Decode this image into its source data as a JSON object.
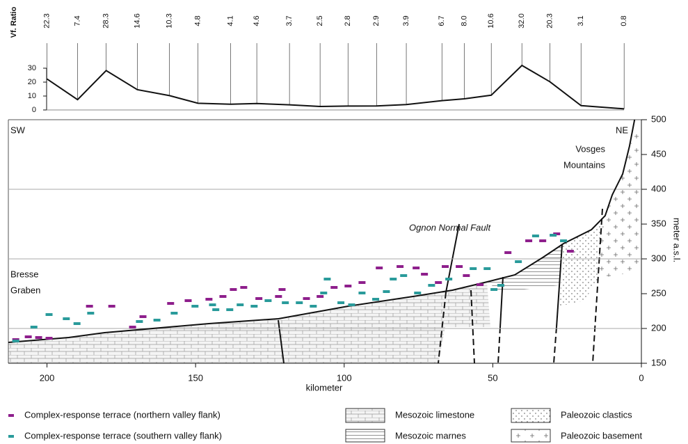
{
  "chart_data": [
    {
      "type": "line",
      "ylabel": "Vf. Ratio",
      "color": "#111",
      "x": [
        200.0,
        189.7,
        180.1,
        169.6,
        158.8,
        149.2,
        138.2,
        129.4,
        118.4,
        108.1,
        98.7,
        89.1,
        79.1,
        67.1,
        59.6,
        50.5,
        40.2,
        30.8,
        20.3,
        5.8
      ],
      "values": [
        22.3,
        7.4,
        28.3,
        14.6,
        10.3,
        4.8,
        4.1,
        4.6,
        3.7,
        2.5,
        2.8,
        2.9,
        3.9,
        6.7,
        8.0,
        10.6,
        32.0,
        20.3,
        3.1,
        0.8
      ],
      "value_labels": [
        "22.3",
        "7.4",
        "28.3",
        "14.6",
        "10.3",
        "4.8",
        "4.1",
        "4.6",
        "3.7",
        "2.5",
        "2.8",
        "2.9",
        "3.9",
        "6.7",
        "8.0",
        "10.6",
        "32.0",
        "20.3",
        "3.1",
        "0.8"
      ],
      "xlim": [
        213,
        0
      ],
      "ylim": [
        0,
        30
      ],
      "yticks": [
        0,
        10,
        20,
        30
      ]
    },
    {
      "type": "scatter",
      "xlabel": "kilometer",
      "ylabel": "meter a.s.l.",
      "xlim": [
        213,
        0
      ],
      "xticks": [
        200,
        150,
        100,
        50,
        0
      ],
      "ylim": [
        150,
        500
      ],
      "yticks": [
        150,
        200,
        250,
        300,
        350,
        400,
        450,
        500
      ],
      "grid_lines": [
        200,
        300,
        400
      ],
      "annotations": [
        "SW",
        "NE",
        "Vosges",
        "Mountains",
        "Bresse",
        "Graben",
        "Ognon Normal Fault"
      ],
      "units": [
        "Mesozoic limestone",
        "Mesozoic marnes",
        "Paleozoic clastics",
        "Paleozoic basement"
      ],
      "profile": {
        "color": "#111",
        "x": [
          213,
          192.7,
          180.6,
          145.5,
          122.1,
          98.7,
          75.3,
          63.6,
          51.9,
          42.6,
          33.2,
          26.2,
          16.8,
          12.2,
          9.8,
          6.3,
          4.0,
          2.3
        ],
        "values": [
          180,
          187,
          194,
          207,
          214,
          232,
          247,
          255,
          267,
          277,
          302,
          322,
          342,
          362,
          392,
          422,
          462,
          500
        ]
      },
      "series": [
        {
          "name": "Complex-response terrace (northern valley flank)",
          "color": "#8e1f8c",
          "x": [
            210.5,
            206.3,
            202.8,
            199.3,
            185.7,
            178.2,
            171.2,
            167.7,
            158.4,
            152.5,
            145.5,
            140.8,
            137.3,
            133.8,
            128.7,
            122.1,
            120.9,
            112.7,
            108.1,
            103.4,
            98.7,
            94.0,
            88.2,
            81.2,
            75.8,
            73.0,
            68.3,
            66.0,
            61.3,
            58.9,
            54.3,
            44.9,
            37.9,
            33.2,
            28.5,
            23.9
          ],
          "values": [
            184,
            188,
            187,
            186,
            232,
            232,
            202,
            217,
            236,
            240,
            242,
            246,
            256,
            259,
            243,
            246,
            256,
            243,
            246,
            259,
            261,
            266,
            287,
            289,
            287,
            278,
            266,
            289,
            289,
            276,
            263,
            309,
            326,
            326,
            336,
            311
          ]
        },
        {
          "name": "Complex-response terrace (southern valley flank)",
          "color": "#2a9b9b",
          "x": [
            210.5,
            204.4,
            199.3,
            193.5,
            189.9,
            185.3,
            168.9,
            163.0,
            157.2,
            150.2,
            144.3,
            143.2,
            138.5,
            135.0,
            130.3,
            125.6,
            119.8,
            115.1,
            110.4,
            106.9,
            105.7,
            101.1,
            97.5,
            94.0,
            89.4,
            85.8,
            83.5,
            80.0,
            75.3,
            70.6,
            64.8,
            56.6,
            51.9,
            49.6,
            47.3,
            41.4,
            35.6,
            29.7,
            26.2
          ],
          "values": [
            182,
            202,
            220,
            214,
            207,
            222,
            210,
            212,
            222,
            232,
            234,
            227,
            227,
            234,
            232,
            240,
            237,
            237,
            232,
            251,
            271,
            237,
            234,
            251,
            242,
            253,
            271,
            276,
            251,
            262,
            271,
            286,
            286,
            256,
            262,
            296,
            333,
            334,
            326
          ]
        }
      ]
    }
  ]
}
